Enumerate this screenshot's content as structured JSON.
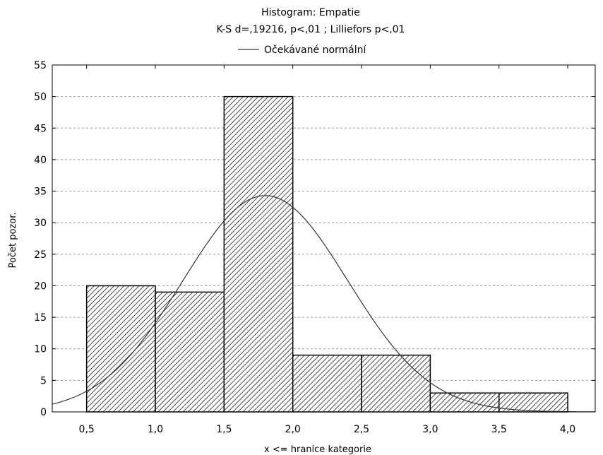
{
  "chart_data": {
    "type": "bar",
    "title": "Histogram: Empatie",
    "subtitle": "K-S d=,19216, p<,01 ; Lilliefors p<,01",
    "legend": {
      "position": "top-center",
      "entries": [
        "Očekávané normální"
      ]
    },
    "xlabel": "x <= hranice kategorie",
    "ylabel": "Počet pozor.",
    "xlim": [
      0.25,
      4.2
    ],
    "ylim": [
      0,
      55
    ],
    "grid": true,
    "x_ticks": [
      0.5,
      1.0,
      1.5,
      2.0,
      2.5,
      3.0,
      3.5,
      4.0
    ],
    "x_tick_labels": [
      "0,5",
      "1,0",
      "1,5",
      "2,0",
      "2,5",
      "3,0",
      "3,5",
      "4,0"
    ],
    "y_ticks": [
      0,
      5,
      10,
      15,
      20,
      25,
      30,
      35,
      40,
      45,
      50,
      55
    ],
    "y_tick_labels": [
      "0",
      "5",
      "10",
      "15",
      "20",
      "25",
      "30",
      "35",
      "40",
      "45",
      "50",
      "55"
    ],
    "bins": [
      {
        "from": 0.5,
        "to": 1.0,
        "count": 20
      },
      {
        "from": 1.0,
        "to": 1.5,
        "count": 19
      },
      {
        "from": 1.5,
        "to": 2.0,
        "count": 50
      },
      {
        "from": 2.0,
        "to": 2.5,
        "count": 9
      },
      {
        "from": 2.5,
        "to": 3.0,
        "count": 9
      },
      {
        "from": 3.0,
        "to": 3.5,
        "count": 3
      },
      {
        "from": 3.5,
        "to": 4.0,
        "count": 3
      }
    ],
    "normal_curve": {
      "name": "Očekávané normální",
      "mean": 1.8,
      "peak": 34.3,
      "sd": 0.6
    }
  }
}
